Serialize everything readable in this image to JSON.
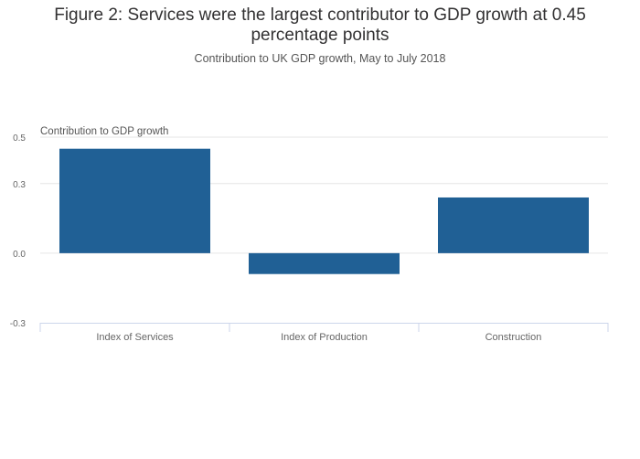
{
  "chart_data": {
    "type": "bar",
    "title": "Figure 2: Services were the largest contributor to GDP growth at 0.45 percentage points",
    "title_lines": [
      "Figure 2: Services were the largest contributor to GDP growth at 0.45",
      "percentage points"
    ],
    "subtitle": "Contribution to UK GDP growth, May to July 2018",
    "ylabel": "Contribution to GDP growth",
    "xlabel": "",
    "categories": [
      "Index of Services",
      "Index of Production",
      "Construction"
    ],
    "values": [
      0.45,
      -0.09,
      0.24
    ],
    "ylim": [
      -0.3,
      0.5
    ],
    "yticks": [
      -0.3,
      0.0,
      0.3,
      0.5
    ],
    "ytick_labels": [
      "-0.3",
      "0.0",
      "0.3",
      "0.5"
    ],
    "grid": true,
    "legend": "none",
    "bar_color": "#206095",
    "grid_color": "#e6e6e6",
    "axis_color": "#ccd6eb",
    "text_color": "#666666"
  }
}
